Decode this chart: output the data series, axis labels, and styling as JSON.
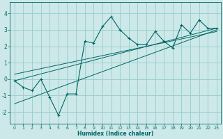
{
  "title": "",
  "xlabel": "Humidex (Indice chaleur)",
  "ylabel": "",
  "xlim": [
    -0.5,
    23.5
  ],
  "ylim": [
    -2.7,
    4.7
  ],
  "yticks": [
    -2,
    -1,
    0,
    1,
    2,
    3,
    4
  ],
  "xticks": [
    0,
    1,
    2,
    3,
    4,
    5,
    6,
    7,
    8,
    9,
    10,
    11,
    12,
    13,
    14,
    15,
    16,
    17,
    18,
    19,
    20,
    21,
    22,
    23
  ],
  "background_color": "#cce8e8",
  "grid_color": "#99cccc",
  "line_color": "#006666",
  "zigzag_x": [
    0,
    1,
    2,
    3,
    4,
    5,
    6,
    7,
    8,
    9,
    10,
    11,
    12,
    13,
    14,
    15,
    16,
    17,
    18,
    19,
    20,
    21,
    22,
    23
  ],
  "zigzag_y": [
    -0.1,
    -0.5,
    -0.7,
    0.0,
    -1.1,
    -2.2,
    -0.9,
    -0.9,
    2.3,
    2.2,
    3.2,
    3.8,
    3.0,
    2.5,
    2.1,
    2.1,
    2.9,
    2.3,
    1.9,
    3.3,
    2.8,
    3.6,
    3.1,
    3.1
  ],
  "line1_x": [
    0,
    23
  ],
  "line1_y": [
    -0.1,
    3.1
  ],
  "line2_x": [
    0,
    23
  ],
  "line2_y": [
    -1.5,
    3.0
  ],
  "line3_x": [
    0,
    23
  ],
  "line3_y": [
    0.3,
    2.9
  ]
}
